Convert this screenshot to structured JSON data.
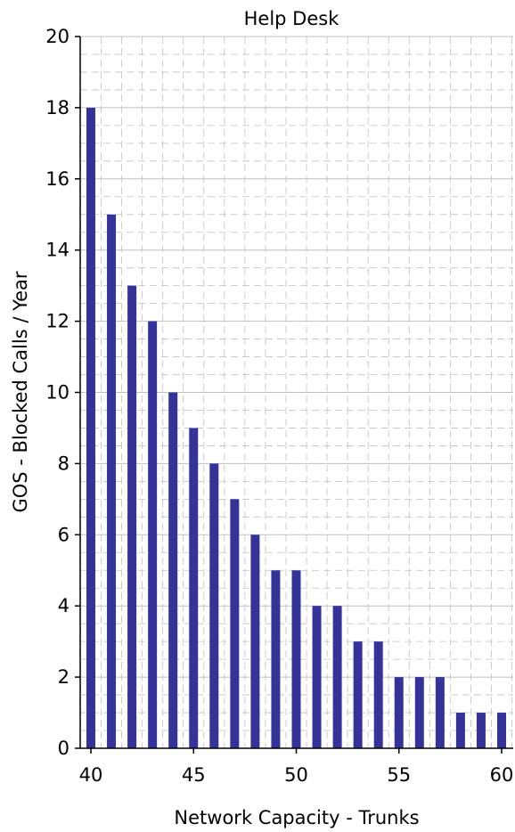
{
  "chart_data": {
    "type": "bar",
    "title": "Help Desk",
    "xlabel": "Network Capacity - Trunks",
    "ylabel": "GOS - Blocked Calls / Year",
    "x": [
      40,
      41,
      42,
      43,
      44,
      45,
      46,
      47,
      48,
      49,
      50,
      51,
      52,
      53,
      54,
      55,
      56,
      57,
      58,
      59,
      60
    ],
    "values": [
      18,
      15,
      13,
      12,
      10,
      9,
      8,
      7,
      6,
      5,
      5,
      4,
      4,
      3,
      3,
      2,
      2,
      2,
      1,
      1,
      1
    ],
    "xlim": [
      40,
      60
    ],
    "ylim": [
      0,
      20
    ],
    "x_ticks": [
      "40",
      "45",
      "50",
      "55",
      "60"
    ],
    "y_ticks": [
      "0",
      "2",
      "4",
      "6",
      "8",
      "10",
      "12",
      "14",
      "16",
      "18",
      "20"
    ],
    "grid": true,
    "bar_color": "#333399",
    "grid_color": "#c0c0c0"
  }
}
